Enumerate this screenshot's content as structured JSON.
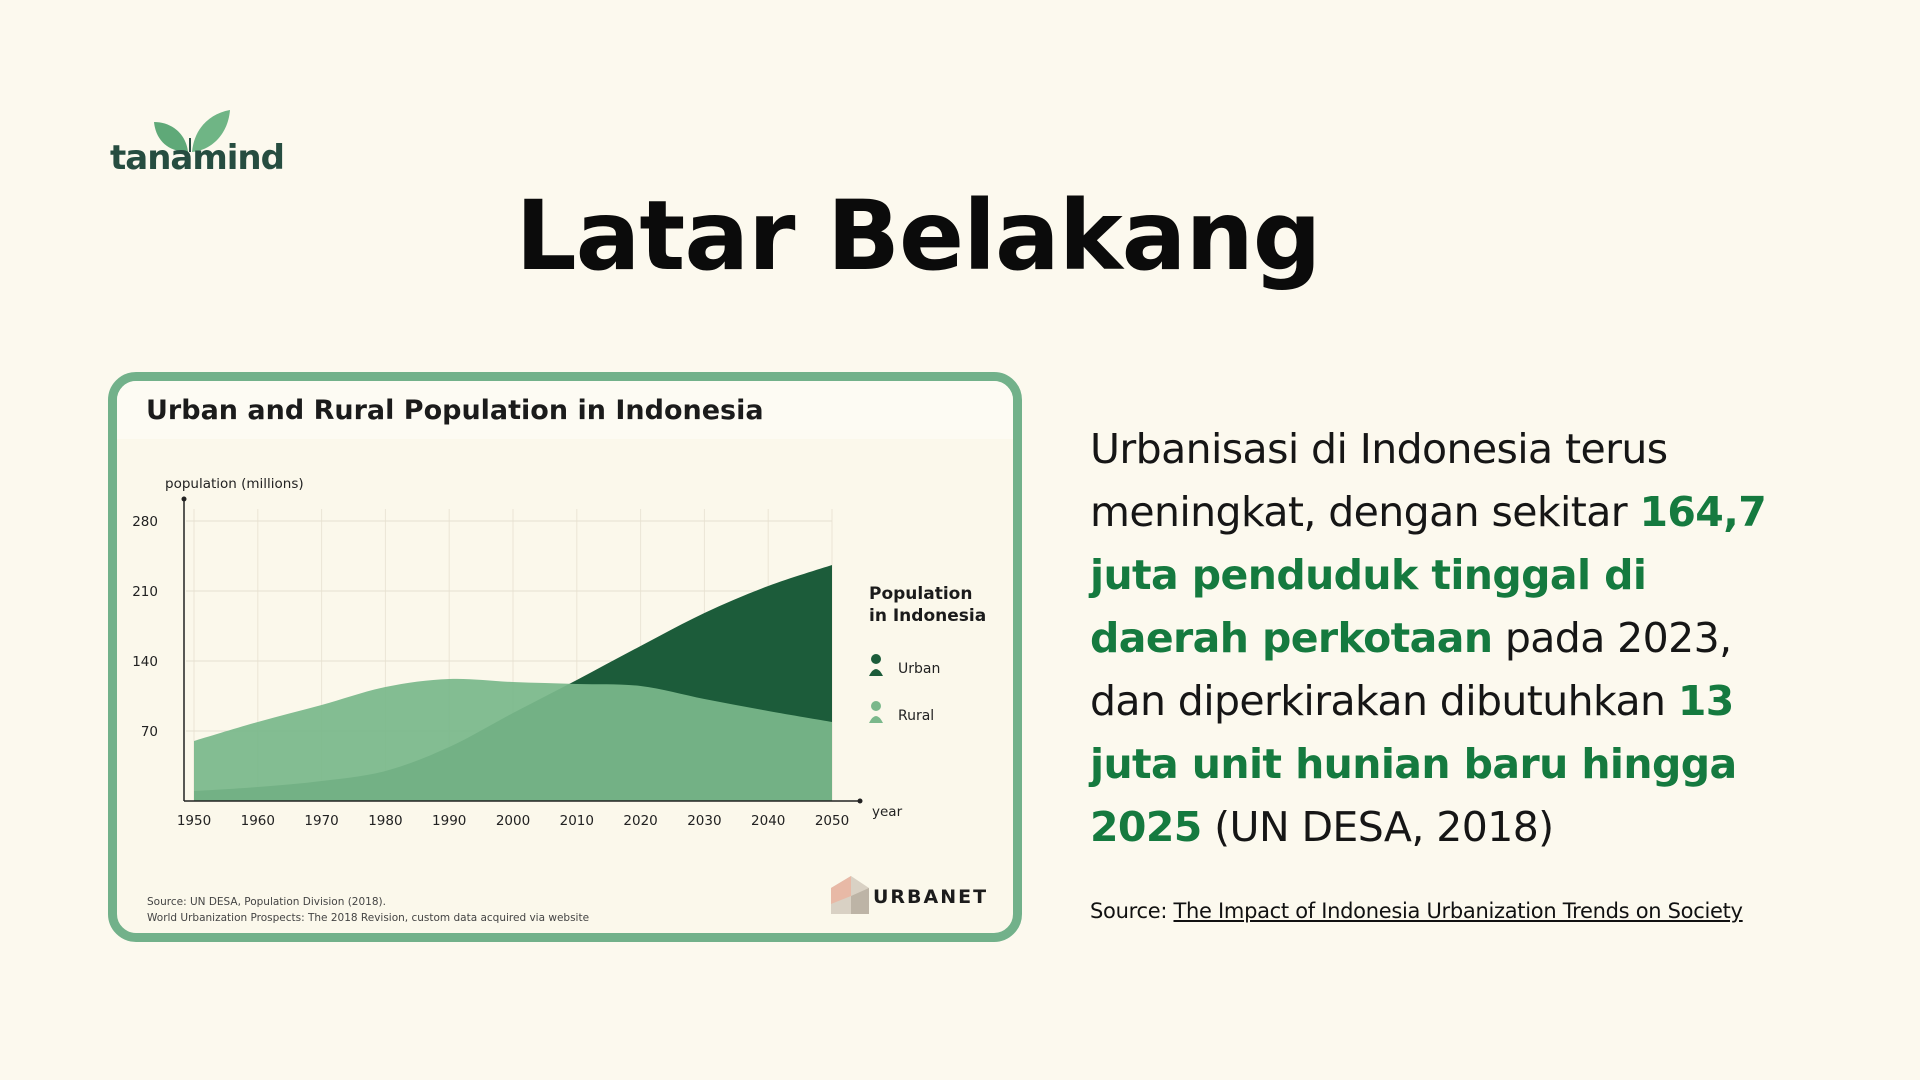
{
  "brand": {
    "name": "tanamind",
    "icon": "leaf-icon",
    "color": "#264d40"
  },
  "page_title": "Latar Belakang",
  "chart_card": {
    "source_line1": "Source: UN DESA, Population Division (2018).",
    "source_line2": "World Urbanization Prospects: The 2018 Revision, custom data acquired via website",
    "brand": "URBANET",
    "border_color": "#72b18a"
  },
  "chart_data": {
    "type": "area",
    "title": "Urban and Rural Population in Indonesia",
    "ylabel": "population (millions)",
    "xlabel": "year",
    "x": [
      1950,
      1960,
      1970,
      1980,
      1990,
      2000,
      2010,
      2020,
      2030,
      2040,
      2050
    ],
    "ylim": [
      0,
      280
    ],
    "xlim": [
      1950,
      2050
    ],
    "yticks": [
      70,
      140,
      210,
      280
    ],
    "grid": true,
    "legend_title": "Population in Indonesia",
    "legend_placement": "right",
    "series": [
      {
        "name": "Urban",
        "color": "#1c5c3a",
        "values": [
          10,
          14,
          20,
          30,
          54,
          88,
          121,
          155,
          188,
          215,
          236
        ]
      },
      {
        "name": "Rural",
        "color": "#7ab88b",
        "values": [
          60,
          79,
          96,
          114,
          122,
          119,
          117,
          115,
          102,
          90,
          79
        ]
      }
    ]
  },
  "text": {
    "p1": "Urbanisasi di Indonesia terus meningkat, dengan sekitar ",
    "h1": "164,7 juta penduduk tinggal di daerah perkotaan",
    "p2": " pada 2023, dan diperkirakan dibutuhkan ",
    "h2": "13 juta unit hunian baru hingga 2025",
    "p3": " (UN DESA, 2018)",
    "highlight_color": "#157a3f"
  },
  "footer": {
    "label": "Source: ",
    "link_text": "The Impact of Indonesia Urbanization Trends on Society"
  }
}
